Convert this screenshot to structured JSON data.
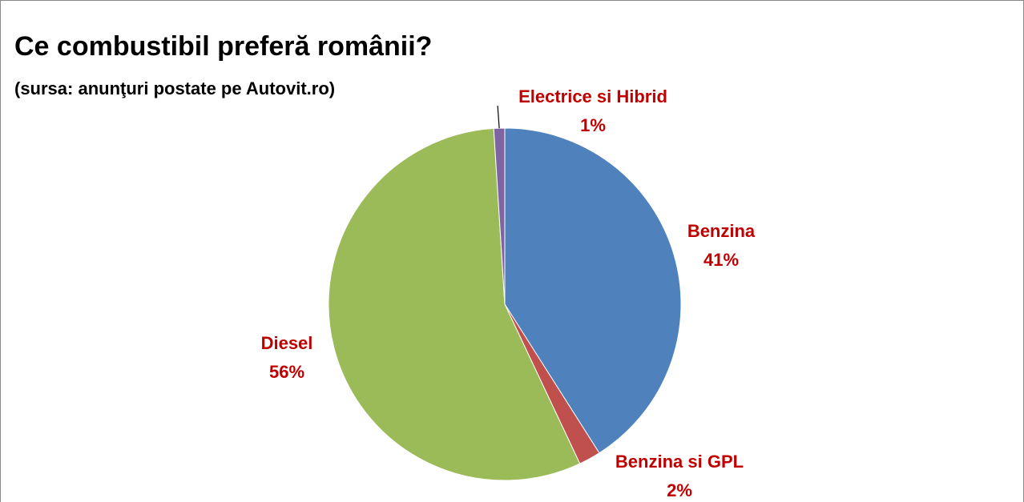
{
  "chart_data": {
    "type": "pie",
    "title": "Ce combustibil preferă românii?",
    "subtitle": "(sursa: anunţuri postate pe Autovit.ro)",
    "categories": [
      "Benzina",
      "Benzina si GPL",
      "Diesel",
      "Electrice si Hibrid"
    ],
    "values": [
      41,
      2,
      56,
      1
    ],
    "value_labels": [
      "41%",
      "2%",
      "56%",
      "1%"
    ],
    "colors": [
      "#4f81bd",
      "#c0504d",
      "#9bbb59",
      "#8064a2"
    ]
  }
}
